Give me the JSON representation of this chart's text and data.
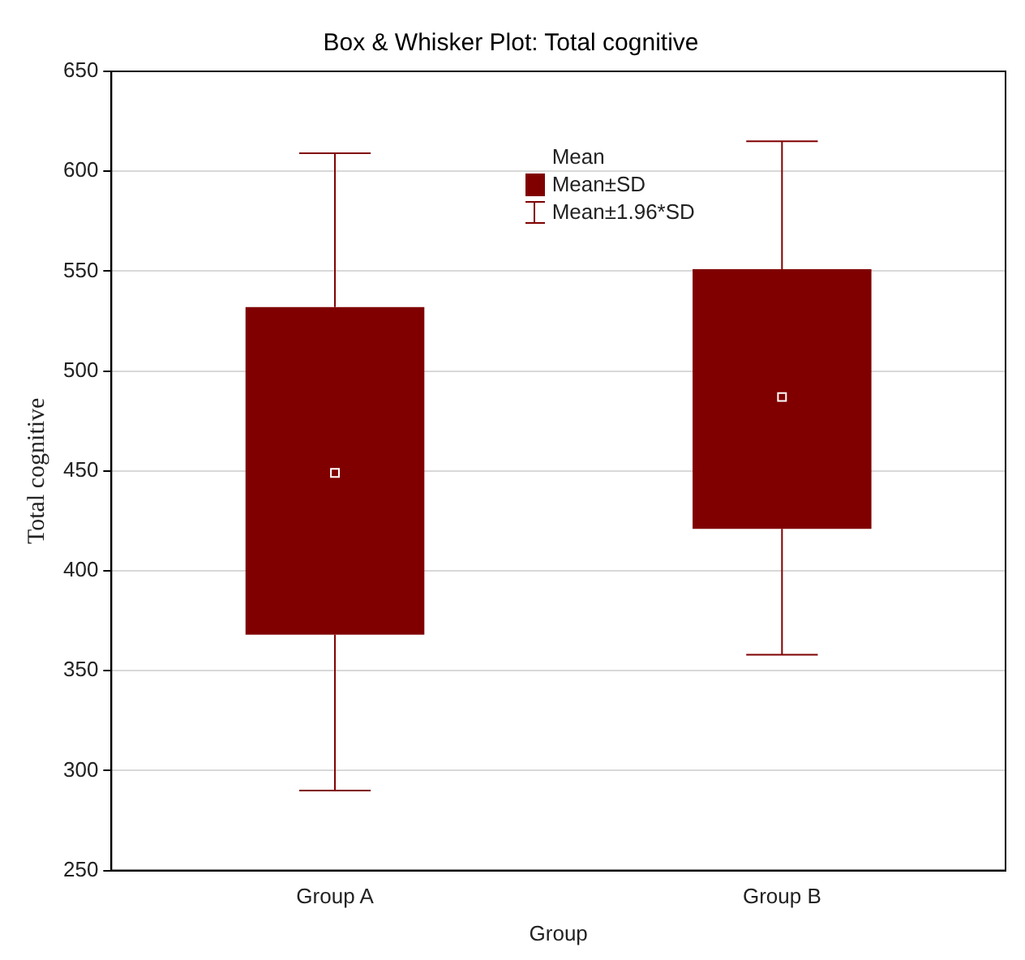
{
  "chart_data": {
    "type": "box",
    "title": "Box & Whisker Plot: Total cognitive",
    "xlabel": "Group",
    "ylabel": "Total cognitive",
    "categories": [
      "Group A",
      "Group B"
    ],
    "color": "#800000",
    "boxes": [
      {
        "low": 290,
        "q1": 368,
        "median": 449,
        "q3": 532,
        "high": 609
      },
      {
        "low": 358,
        "q1": 421,
        "median": 487,
        "q3": 551,
        "high": 615
      }
    ],
    "ylim": [
      250,
      650
    ],
    "yticks": [
      250,
      300,
      350,
      400,
      450,
      500,
      550,
      600,
      650
    ],
    "grid": "y",
    "annotations": [
      "Mean",
      "Mean±SD",
      "Mean±1.96*SD"
    ]
  }
}
